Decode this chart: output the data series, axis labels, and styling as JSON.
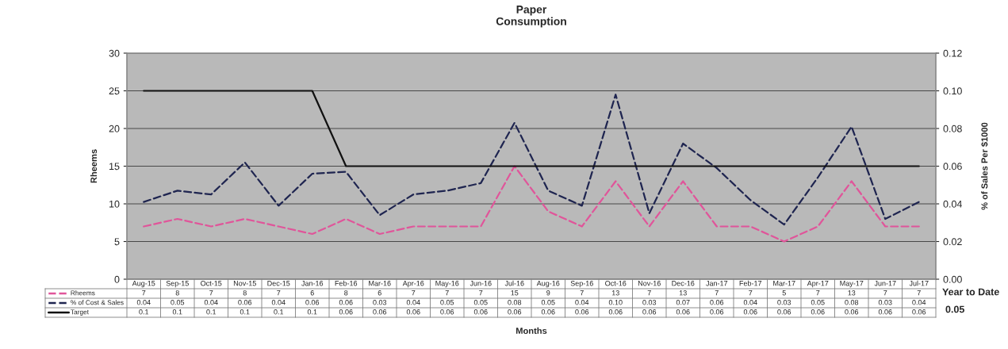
{
  "chart_data": {
    "type": "line",
    "title": "Paper\nConsumption",
    "xlabel": "Months",
    "ylabel": "Rheems",
    "y2label": "% of Sales Per $1000",
    "categories": [
      "Aug-15",
      "Sep-15",
      "Oct-15",
      "Nov-15",
      "Dec-15",
      "Jan-16",
      "Feb-16",
      "Mar-16",
      "Apr-16",
      "May-16",
      "Jun-16",
      "Jul-16",
      "Aug-16",
      "Sep-16",
      "Oct-16",
      "Nov-16",
      "Dec-16",
      "Jan-17",
      "Feb-17",
      "Mar-17",
      "Apr-17",
      "May-17",
      "Jun-17",
      "Jul-17"
    ],
    "series": [
      {
        "name": "Rheems",
        "color": "#e0559a",
        "line_style": "dashed",
        "values": [
          7,
          8,
          7,
          8,
          7,
          6,
          8,
          6,
          7,
          7,
          7,
          15,
          9,
          7,
          13,
          7,
          13,
          7,
          7,
          5,
          7,
          13,
          7,
          7
        ],
        "value_labels": [
          "7",
          "8",
          "7",
          "8",
          "7",
          "6",
          "8",
          "6",
          "7",
          "7",
          "7",
          "15",
          "9",
          "7",
          "13",
          "7",
          "13",
          "7",
          "7",
          "5",
          "7",
          "13",
          "7",
          "7"
        ]
      },
      {
        "name": "% of Cost & Sales",
        "color": "#1f2550",
        "line_style": "dashed",
        "axis": "y2",
        "values": [
          0.041,
          0.047,
          0.045,
          0.062,
          0.039,
          0.056,
          0.057,
          0.034,
          0.045,
          0.047,
          0.051,
          0.083,
          0.047,
          0.039,
          0.098,
          0.035,
          0.072,
          0.059,
          0.042,
          0.029,
          0.054,
          0.081,
          0.032,
          0.041
        ],
        "value_labels": [
          "0.04",
          "0.05",
          "0.04",
          "0.06",
          "0.04",
          "0.06",
          "0.06",
          "0.03",
          "0.04",
          "0.05",
          "0.05",
          "0.08",
          "0.05",
          "0.04",
          "0.10",
          "0.03",
          "0.07",
          "0.06",
          "0.04",
          "0.03",
          "0.05",
          "0.08",
          "0.03",
          "0.04"
        ]
      },
      {
        "name": "Target",
        "color": "#111111",
        "line_style": "solid",
        "axis": "y2",
        "values": [
          0.1,
          0.1,
          0.1,
          0.1,
          0.1,
          0.1,
          0.06,
          0.06,
          0.06,
          0.06,
          0.06,
          0.06,
          0.06,
          0.06,
          0.06,
          0.06,
          0.06,
          0.06,
          0.06,
          0.06,
          0.06,
          0.06,
          0.06,
          0.06
        ],
        "value_labels": [
          "0.1",
          "0.1",
          "0.1",
          "0.1",
          "0.1",
          "0.1",
          "0.06",
          "0.06",
          "0.06",
          "0.06",
          "0.06",
          "0.06",
          "0.06",
          "0.06",
          "0.06",
          "0.06",
          "0.06",
          "0.06",
          "0.06",
          "0.06",
          "0.06",
          "0.06",
          "0.06",
          "0.06"
        ]
      }
    ],
    "ylim": [
      0,
      30
    ],
    "yticks": [
      0,
      5,
      10,
      15,
      20,
      25,
      30
    ],
    "y2lim": [
      0,
      0.12
    ],
    "y2ticks": [
      {
        "value": 0,
        "label": "0.00"
      },
      {
        "value": 0.02,
        "label": "0.02"
      },
      {
        "value": 0.04,
        "label": "0.04"
      },
      {
        "value": 0.06,
        "label": "0.06"
      },
      {
        "value": 0.08,
        "label": "0.08"
      },
      {
        "value": 0.1,
        "label": "0.10"
      },
      {
        "value": 0.12,
        "label": "0.12"
      }
    ],
    "grid": "y",
    "legend": "bottom left",
    "annotations": [
      "Year to Date",
      "0.05"
    ]
  }
}
